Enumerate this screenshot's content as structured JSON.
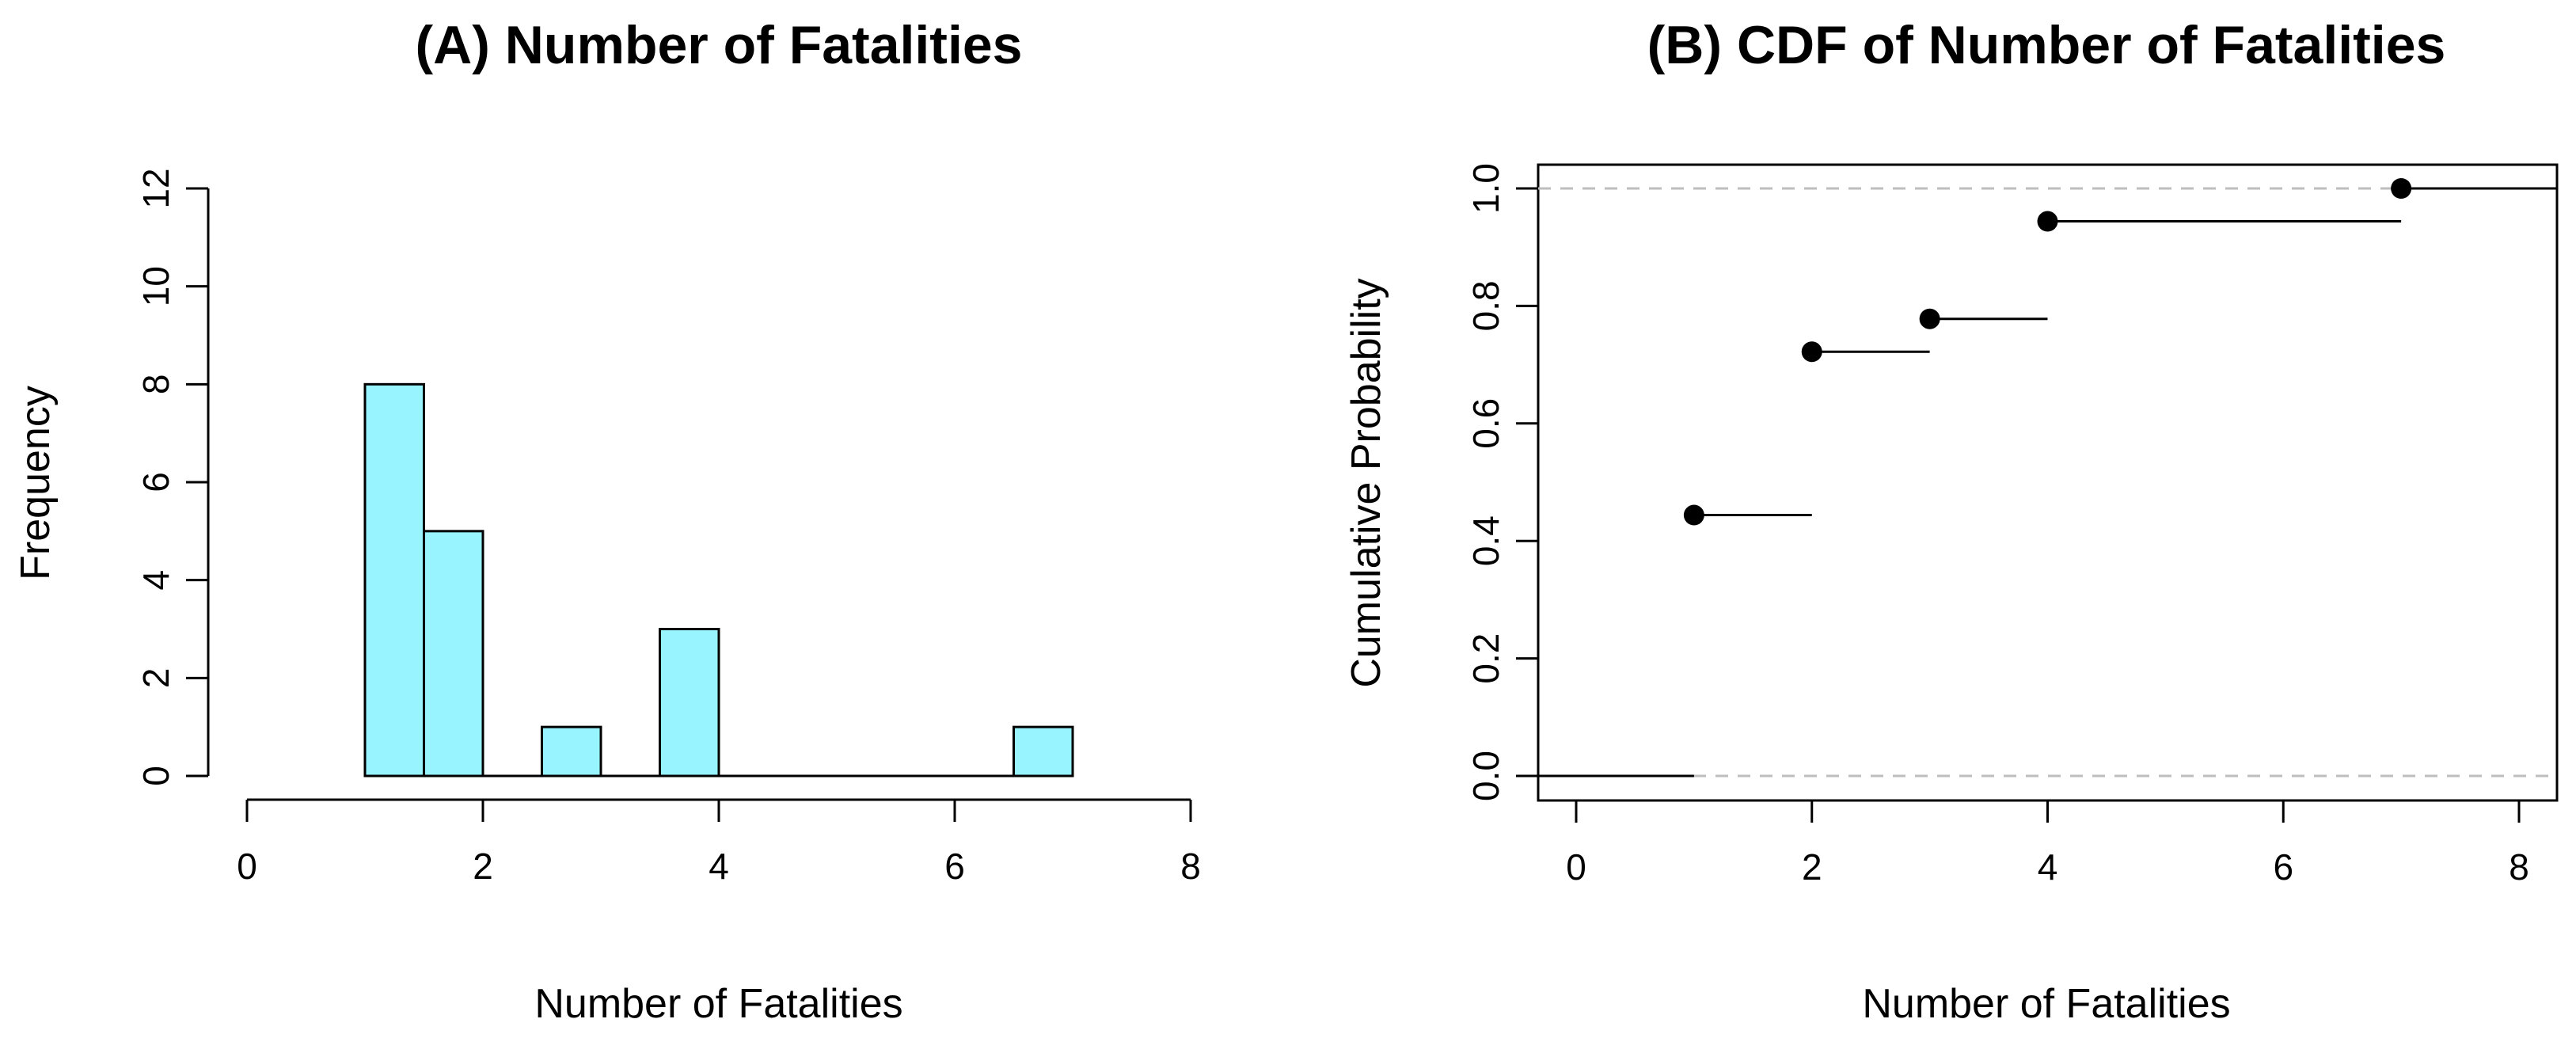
{
  "chart_data": [
    {
      "type": "bar",
      "subtype": "histogram",
      "title": "(A) Number of Fatalities",
      "xlabel": "Number of Fatalities",
      "ylabel": "Frequency",
      "xlim": [
        0,
        8
      ],
      "ylim": [
        0,
        12
      ],
      "x_ticks": [
        0,
        2,
        4,
        6,
        8
      ],
      "y_ticks": [
        0,
        2,
        4,
        6,
        8,
        10,
        12
      ],
      "bin_edges": [
        1,
        1.5,
        2,
        2.5,
        3,
        3.5,
        4,
        4.5,
        5,
        5.5,
        6,
        6.5,
        7
      ],
      "values": [
        8,
        5,
        0,
        1,
        0,
        3,
        0,
        0,
        0,
        0,
        0,
        1
      ],
      "fill_color": "#98F5FF",
      "edge_color": "#000000"
    },
    {
      "type": "line",
      "subtype": "step-ecdf",
      "title": "(B) CDF of Number of Fatalities",
      "xlabel": "Number of Fatalities",
      "ylabel": "Cumulative Probability",
      "xlim": [
        0,
        8
      ],
      "ylim": [
        0,
        1
      ],
      "x_ticks": [
        0,
        2,
        4,
        6,
        8
      ],
      "y_ticks": [
        0.0,
        0.2,
        0.4,
        0.6,
        0.8,
        1.0
      ],
      "x": [
        1,
        2,
        3,
        4,
        7
      ],
      "y": [
        0.444,
        0.722,
        0.778,
        0.944,
        1.0
      ],
      "reference_lines": [
        0,
        1
      ],
      "reference_color": "#BEBEBE"
    }
  ]
}
